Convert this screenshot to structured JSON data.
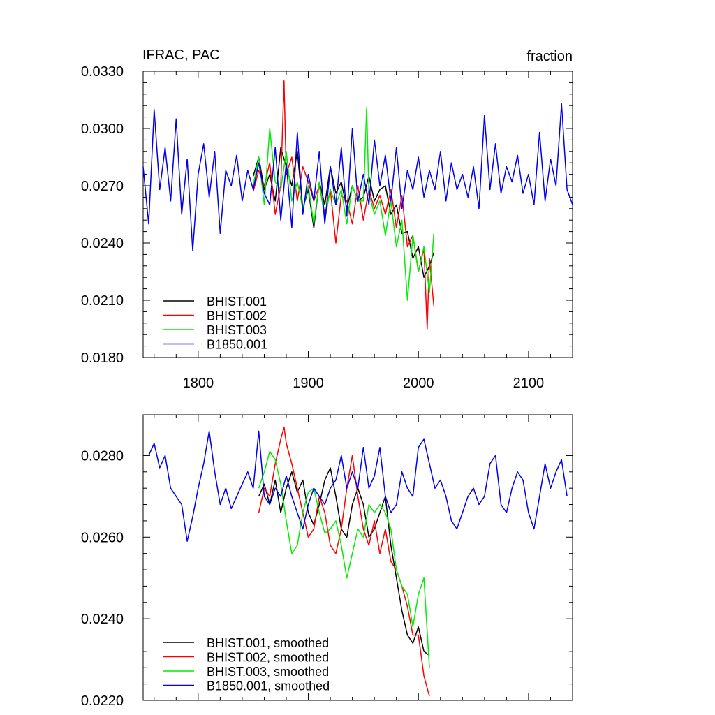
{
  "chart_data": [
    {
      "type": "line",
      "title": "IFRAC, PAC",
      "units": "fraction",
      "xlim": [
        1750,
        2140
      ],
      "ylim": [
        0.018,
        0.033
      ],
      "xticks": [
        1800,
        1900,
        2000,
        2100
      ],
      "xtick_labels": [
        "1800",
        "1900",
        "2000",
        "2100"
      ],
      "yticks": [
        0.018,
        0.021,
        0.024,
        0.027,
        0.03,
        0.033
      ],
      "ytick_labels": [
        "0.0180",
        "0.0210",
        "0.0240",
        "0.0270",
        "0.0300",
        "0.0330"
      ],
      "legend_position": "bottom-left",
      "series": [
        {
          "name": "BHIST.001",
          "color": "#000000",
          "x": [
            1850,
            1855,
            1860,
            1865,
            1870,
            1875,
            1880,
            1885,
            1890,
            1895,
            1900,
            1905,
            1910,
            1915,
            1920,
            1925,
            1930,
            1935,
            1940,
            1945,
            1950,
            1955,
            1960,
            1965,
            1970,
            1975,
            1980,
            1985,
            1990,
            1995,
            2000,
            2005,
            2010,
            2014
          ],
          "y": [
            0.0275,
            0.0285,
            0.0268,
            0.0276,
            0.0262,
            0.029,
            0.028,
            0.027,
            0.0288,
            0.0258,
            0.0268,
            0.0248,
            0.0272,
            0.026,
            0.028,
            0.0266,
            0.0272,
            0.0258,
            0.027,
            0.0262,
            0.0264,
            0.0275,
            0.0262,
            0.0268,
            0.027,
            0.0255,
            0.026,
            0.0245,
            0.0246,
            0.0232,
            0.0238,
            0.0222,
            0.0228,
            0.0235
          ]
        },
        {
          "name": "BHIST.002",
          "color": "#ff0000",
          "x": [
            1850,
            1855,
            1860,
            1865,
            1870,
            1875,
            1878,
            1880,
            1885,
            1890,
            1895,
            1900,
            1905,
            1910,
            1915,
            1920,
            1925,
            1930,
            1935,
            1940,
            1945,
            1950,
            1955,
            1960,
            1965,
            1970,
            1975,
            1980,
            1985,
            1990,
            1995,
            2000,
            2005,
            2008,
            2010,
            2014
          ],
          "y": [
            0.0267,
            0.0278,
            0.027,
            0.0282,
            0.0255,
            0.027,
            0.0325,
            0.0276,
            0.0285,
            0.0262,
            0.028,
            0.0272,
            0.0262,
            0.027,
            0.0255,
            0.0268,
            0.024,
            0.0265,
            0.0262,
            0.025,
            0.027,
            0.0252,
            0.0268,
            0.0258,
            0.0265,
            0.0255,
            0.0268,
            0.0248,
            0.0265,
            0.0238,
            0.0244,
            0.0225,
            0.0237,
            0.0195,
            0.0232,
            0.0207
          ]
        },
        {
          "name": "BHIST.003",
          "color": "#00ee00",
          "x": [
            1850,
            1855,
            1860,
            1865,
            1870,
            1875,
            1880,
            1885,
            1890,
            1895,
            1900,
            1905,
            1910,
            1915,
            1920,
            1925,
            1930,
            1935,
            1940,
            1945,
            1950,
            1953,
            1955,
            1960,
            1965,
            1970,
            1975,
            1980,
            1985,
            1990,
            1995,
            2000,
            2005,
            2010,
            2014
          ],
          "y": [
            0.027,
            0.0285,
            0.026,
            0.03,
            0.0272,
            0.0268,
            0.0288,
            0.0262,
            0.0272,
            0.0258,
            0.027,
            0.025,
            0.0272,
            0.0252,
            0.0268,
            0.026,
            0.0268,
            0.025,
            0.027,
            0.0262,
            0.0262,
            0.0311,
            0.0266,
            0.0255,
            0.0262,
            0.0244,
            0.0262,
            0.0238,
            0.0252,
            0.021,
            0.0244,
            0.0225,
            0.0238,
            0.0214,
            0.0245
          ]
        },
        {
          "name": "B1850.001",
          "color": "#0000ee",
          "x": [
            1750,
            1755,
            1760,
            1765,
            1770,
            1775,
            1780,
            1785,
            1790,
            1795,
            1800,
            1805,
            1810,
            1815,
            1820,
            1825,
            1830,
            1835,
            1840,
            1845,
            1850,
            1855,
            1860,
            1865,
            1870,
            1875,
            1880,
            1885,
            1890,
            1895,
            1900,
            1905,
            1910,
            1915,
            1920,
            1925,
            1930,
            1935,
            1940,
            1945,
            1950,
            1955,
            1960,
            1965,
            1970,
            1975,
            1980,
            1985,
            1990,
            1995,
            2000,
            2005,
            2010,
            2015,
            2020,
            2025,
            2030,
            2035,
            2040,
            2045,
            2050,
            2055,
            2060,
            2065,
            2070,
            2075,
            2080,
            2085,
            2090,
            2095,
            2100,
            2105,
            2110,
            2115,
            2120,
            2125,
            2130,
            2135,
            2140
          ],
          "y": [
            0.028,
            0.025,
            0.031,
            0.0268,
            0.029,
            0.0262,
            0.0305,
            0.0255,
            0.0284,
            0.0236,
            0.0276,
            0.0292,
            0.0264,
            0.0288,
            0.0245,
            0.0278,
            0.027,
            0.0286,
            0.0262,
            0.0278,
            0.0268,
            0.0282,
            0.0266,
            0.026,
            0.029,
            0.0252,
            0.0282,
            0.0248,
            0.0298,
            0.0255,
            0.0276,
            0.0262,
            0.0288,
            0.025,
            0.028,
            0.026,
            0.029,
            0.0254,
            0.03,
            0.0262,
            0.0276,
            0.026,
            0.0294,
            0.027,
            0.0286,
            0.0262,
            0.029,
            0.0258,
            0.0278,
            0.0268,
            0.0285,
            0.0264,
            0.0278,
            0.0268,
            0.0288,
            0.0262,
            0.0282,
            0.0268,
            0.0276,
            0.0264,
            0.028,
            0.0258,
            0.0307,
            0.0268,
            0.0292,
            0.0266,
            0.028,
            0.0272,
            0.0286,
            0.0266,
            0.0276,
            0.026,
            0.0298,
            0.0262,
            0.0284,
            0.027,
            0.0313,
            0.0268,
            0.026
          ]
        }
      ]
    },
    {
      "type": "line",
      "xlim": [
        1750,
        2140
      ],
      "ylim": [
        0.022,
        0.029
      ],
      "xticks": [
        1800,
        1900,
        2000,
        2100
      ],
      "yticks": [
        0.022,
        0.024,
        0.026,
        0.028
      ],
      "ytick_labels": [
        "0.0220",
        "0.0240",
        "0.0260",
        "0.0280"
      ],
      "legend_position": "bottom-left",
      "series": [
        {
          "name": "BHIST.001, smoothed",
          "color": "#000000",
          "x": [
            1855,
            1860,
            1865,
            1870,
            1875,
            1880,
            1885,
            1890,
            1895,
            1900,
            1905,
            1910,
            1915,
            1920,
            1925,
            1930,
            1935,
            1940,
            1945,
            1950,
            1955,
            1960,
            1965,
            1970,
            1975,
            1980,
            1985,
            1990,
            1995,
            2000,
            2005,
            2010
          ],
          "y": [
            0.027,
            0.0273,
            0.0268,
            0.0274,
            0.0266,
            0.0272,
            0.0276,
            0.0271,
            0.0274,
            0.0266,
            0.0263,
            0.0268,
            0.0274,
            0.0277,
            0.027,
            0.0262,
            0.026,
            0.0268,
            0.0272,
            0.0268,
            0.026,
            0.0262,
            0.0266,
            0.027,
            0.0258,
            0.025,
            0.0242,
            0.0236,
            0.0234,
            0.0238,
            0.0232,
            0.0231
          ]
        },
        {
          "name": "BHIST.002, smoothed",
          "color": "#ff0000",
          "x": [
            1855,
            1860,
            1865,
            1870,
            1875,
            1878,
            1880,
            1885,
            1890,
            1895,
            1900,
            1905,
            1910,
            1915,
            1920,
            1925,
            1930,
            1935,
            1940,
            1945,
            1950,
            1955,
            1960,
            1965,
            1970,
            1975,
            1980,
            1985,
            1990,
            1995,
            2000,
            2005,
            2010
          ],
          "y": [
            0.0266,
            0.0272,
            0.027,
            0.0278,
            0.0284,
            0.0287,
            0.0283,
            0.0278,
            0.0272,
            0.0266,
            0.026,
            0.0262,
            0.027,
            0.0266,
            0.0258,
            0.0256,
            0.0262,
            0.0272,
            0.028,
            0.027,
            0.0262,
            0.0258,
            0.0264,
            0.0256,
            0.0262,
            0.0254,
            0.0252,
            0.0248,
            0.0243,
            0.0236,
            0.0236,
            0.0226,
            0.0221
          ]
        },
        {
          "name": "BHIST.003, smoothed",
          "color": "#00ee00",
          "x": [
            1855,
            1860,
            1865,
            1870,
            1875,
            1880,
            1885,
            1890,
            1895,
            1900,
            1905,
            1910,
            1915,
            1920,
            1925,
            1930,
            1935,
            1940,
            1945,
            1950,
            1955,
            1960,
            1965,
            1970,
            1975,
            1980,
            1985,
            1990,
            1995,
            2000,
            2005,
            2010
          ],
          "y": [
            0.0272,
            0.0276,
            0.0281,
            0.0279,
            0.0273,
            0.0264,
            0.0256,
            0.0258,
            0.0266,
            0.0271,
            0.0272,
            0.0266,
            0.0261,
            0.0262,
            0.0264,
            0.0258,
            0.025,
            0.0256,
            0.0262,
            0.026,
            0.0268,
            0.0266,
            0.0268,
            0.0266,
            0.0262,
            0.0252,
            0.0248,
            0.0246,
            0.0238,
            0.0246,
            0.025,
            0.0228
          ]
        },
        {
          "name": "B1850.001, smoothed",
          "color": "#0000ee",
          "x": [
            1755,
            1760,
            1765,
            1770,
            1775,
            1780,
            1785,
            1790,
            1795,
            1800,
            1805,
            1810,
            1815,
            1820,
            1825,
            1830,
            1835,
            1840,
            1845,
            1850,
            1855,
            1860,
            1865,
            1870,
            1875,
            1880,
            1885,
            1890,
            1895,
            1900,
            1905,
            1910,
            1915,
            1920,
            1925,
            1930,
            1935,
            1940,
            1945,
            1950,
            1955,
            1960,
            1965,
            1970,
            1975,
            1980,
            1985,
            1990,
            1995,
            2000,
            2005,
            2010,
            2015,
            2020,
            2025,
            2030,
            2035,
            2040,
            2045,
            2050,
            2055,
            2060,
            2065,
            2070,
            2075,
            2080,
            2085,
            2090,
            2095,
            2100,
            2105,
            2110,
            2115,
            2120,
            2125,
            2130,
            2135
          ],
          "y": [
            0.028,
            0.0283,
            0.0277,
            0.028,
            0.0272,
            0.027,
            0.0268,
            0.0259,
            0.0265,
            0.0272,
            0.0278,
            0.0286,
            0.0276,
            0.0268,
            0.0272,
            0.0267,
            0.027,
            0.0273,
            0.0276,
            0.0272,
            0.0286,
            0.027,
            0.0268,
            0.0272,
            0.027,
            0.0275,
            0.027,
            0.0266,
            0.0262,
            0.0268,
            0.0272,
            0.027,
            0.0268,
            0.0272,
            0.0274,
            0.028,
            0.0272,
            0.0276,
            0.0272,
            0.0282,
            0.0272,
            0.0275,
            0.0282,
            0.027,
            0.0266,
            0.0268,
            0.0276,
            0.0272,
            0.027,
            0.0282,
            0.0284,
            0.0278,
            0.0272,
            0.0274,
            0.027,
            0.0264,
            0.0262,
            0.0266,
            0.027,
            0.0272,
            0.0268,
            0.027,
            0.0278,
            0.028,
            0.0268,
            0.0266,
            0.0272,
            0.0276,
            0.0274,
            0.0266,
            0.0262,
            0.027,
            0.0278,
            0.0272,
            0.0276,
            0.0279,
            0.027
          ]
        }
      ]
    }
  ]
}
